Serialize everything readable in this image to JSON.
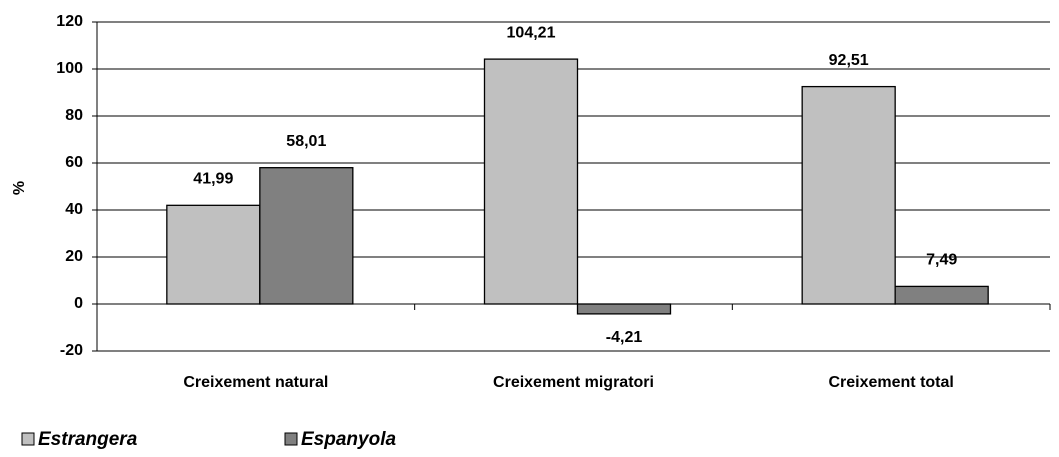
{
  "chart_data": {
    "type": "bar",
    "y_label": "%",
    "categories": [
      "Creixement natural",
      "Creixement migratori",
      "Creixement total"
    ],
    "series": [
      {
        "name": "Estrangera",
        "color": "#c0c0c0",
        "values": [
          41.99,
          104.21,
          92.51
        ],
        "value_labels": [
          "41,99",
          "104,21",
          "92,51"
        ]
      },
      {
        "name": "Espanyola",
        "color": "#808080",
        "values": [
          58.01,
          -4.21,
          7.49
        ],
        "value_labels": [
          "58,01",
          "-4,21",
          "7,49"
        ]
      }
    ],
    "ylim": [
      -20,
      120
    ],
    "yticks": [
      -20,
      0,
      20,
      40,
      60,
      80,
      100,
      120
    ],
    "grid": true,
    "legend": "bottom-left"
  }
}
